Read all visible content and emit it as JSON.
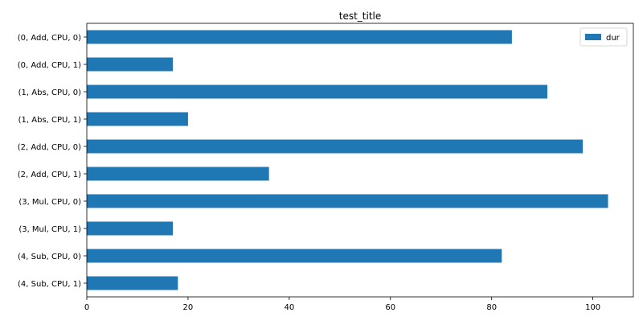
{
  "chart_data": {
    "type": "bar",
    "orientation": "horizontal",
    "title": "test_title",
    "xlabel": "",
    "ylabel": "",
    "categories": [
      "(0, Add, CPU, 0)",
      "(0, Add, CPU, 1)",
      "(1, Abs, CPU, 0)",
      "(1, Abs, CPU, 1)",
      "(2, Add, CPU, 0)",
      "(2, Add, CPU, 1)",
      "(3, Mul, CPU, 0)",
      "(3, Mul, CPU, 1)",
      "(4, Sub, CPU, 0)",
      "(4, Sub, CPU, 1)"
    ],
    "series": [
      {
        "name": "dur",
        "color": "#1f77b4",
        "values": [
          84,
          17,
          91,
          20,
          98,
          36,
          103,
          17,
          82,
          18
        ]
      }
    ],
    "xlim": [
      0,
      108
    ],
    "xticks": [
      0,
      20,
      40,
      60,
      80,
      100
    ],
    "grid": false,
    "legend": "top-right"
  }
}
